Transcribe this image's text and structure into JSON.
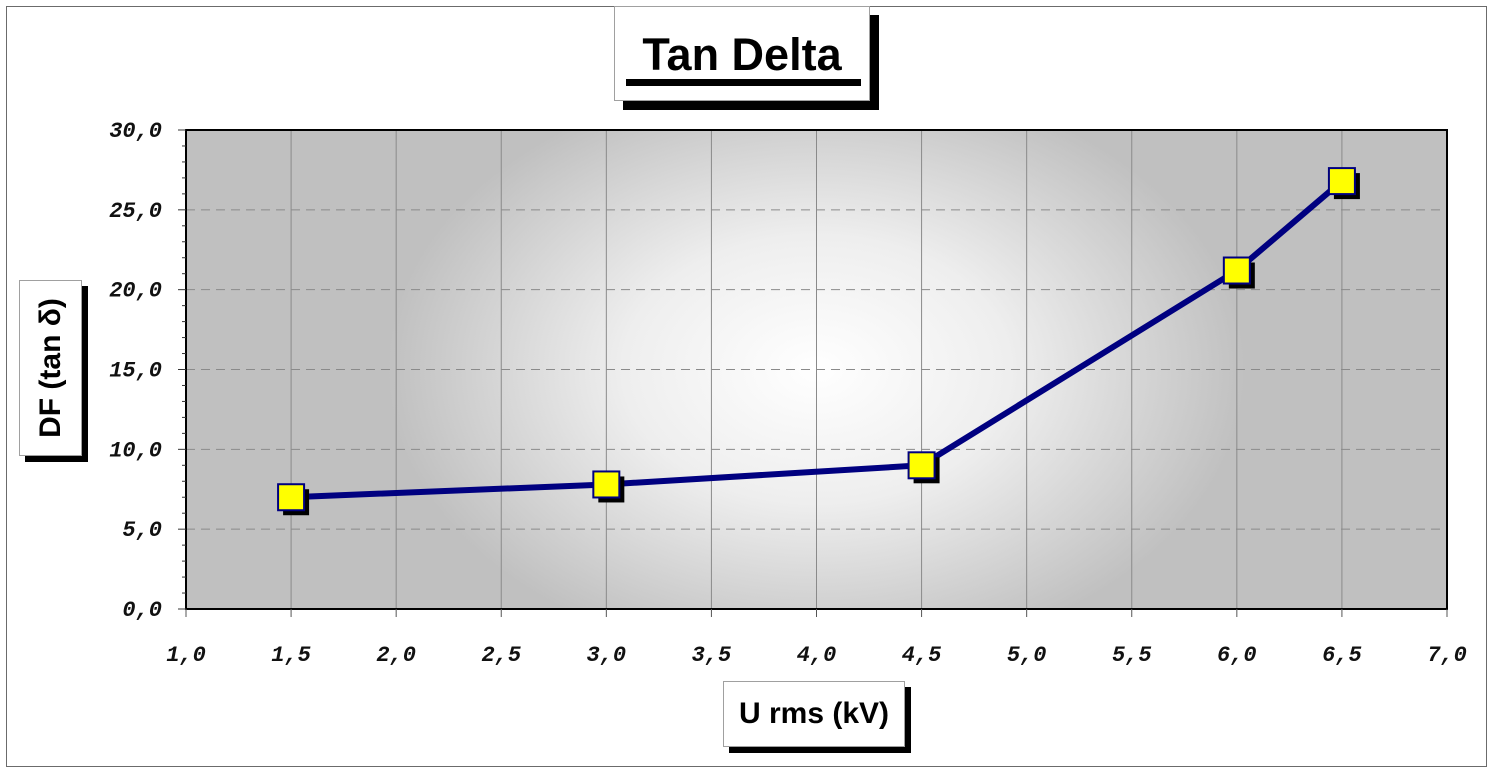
{
  "chart_data": {
    "type": "line",
    "title": "Tan Delta",
    "xlabel": "U rms (kV)",
    "ylabel": "DF (tan δ)",
    "xlim": [
      1.0,
      7.0
    ],
    "ylim": [
      0.0,
      30.0
    ],
    "x_ticks": [
      "1,0",
      "1,5",
      "2,0",
      "2,5",
      "3,0",
      "3,5",
      "4,0",
      "4,5",
      "5,0",
      "5,5",
      "6,0",
      "6,5",
      "7,0"
    ],
    "y_ticks": [
      "0,0",
      "5,0",
      "10,0",
      "15,0",
      "20,0",
      "25,0",
      "30,0"
    ],
    "grid": {
      "x": "solid",
      "y": "dashed"
    },
    "legend": null,
    "series": [
      {
        "name": "DF (tan δ)",
        "line_color": "#000080",
        "marker": "square",
        "marker_color": "#FFFF00",
        "x": [
          1.5,
          3.0,
          4.5,
          6.0,
          6.5
        ],
        "values": [
          7.0,
          7.8,
          9.0,
          21.2,
          26.8
        ]
      }
    ]
  },
  "colors": {
    "plot_bg_edge": "#c0c0c0",
    "plot_bg_center": "#ffffff",
    "line": "#000080",
    "marker": "#ffff00"
  }
}
